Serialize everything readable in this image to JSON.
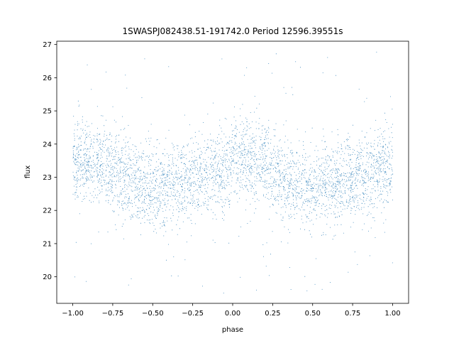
{
  "chart_data": {
    "type": "scatter",
    "title": "1SWASPJ082438.51-191742.0 Period 12596.39551s",
    "xlabel": "phase",
    "ylabel": "flux",
    "xlim": [
      -1.1,
      1.1
    ],
    "ylim": [
      19.2,
      27.1
    ],
    "xticks": [
      -1.0,
      -0.75,
      -0.5,
      -0.25,
      0.0,
      0.25,
      0.5,
      0.75,
      1.0
    ],
    "xtick_labels": [
      "−1.00",
      "−0.75",
      "−0.50",
      "−0.25",
      "0.00",
      "0.25",
      "0.50",
      "0.75",
      "1.00"
    ],
    "yticks": [
      20,
      21,
      22,
      23,
      24,
      25,
      26,
      27
    ],
    "ytick_labels": [
      "20",
      "21",
      "22",
      "23",
      "24",
      "25",
      "26",
      "27"
    ],
    "grid": false,
    "series_color": "#1f77b4",
    "profile": {
      "phase": [
        -1.0,
        -0.9,
        -0.8,
        -0.7,
        -0.6,
        -0.5,
        -0.4,
        -0.3,
        -0.2,
        -0.1,
        0.0,
        0.1,
        0.2,
        0.3,
        0.4,
        0.5,
        0.6,
        0.7,
        0.8,
        0.9,
        1.0
      ],
      "mean_flux": [
        23.4,
        23.5,
        23.4,
        23.1,
        22.8,
        22.6,
        22.8,
        22.9,
        23.0,
        23.2,
        23.4,
        23.5,
        23.4,
        23.1,
        22.8,
        22.6,
        22.8,
        22.9,
        23.0,
        23.2,
        23.4
      ],
      "scatter": 0.6
    },
    "approx_points": 9000,
    "outlier_range": [
      19.5,
      26.8
    ]
  }
}
